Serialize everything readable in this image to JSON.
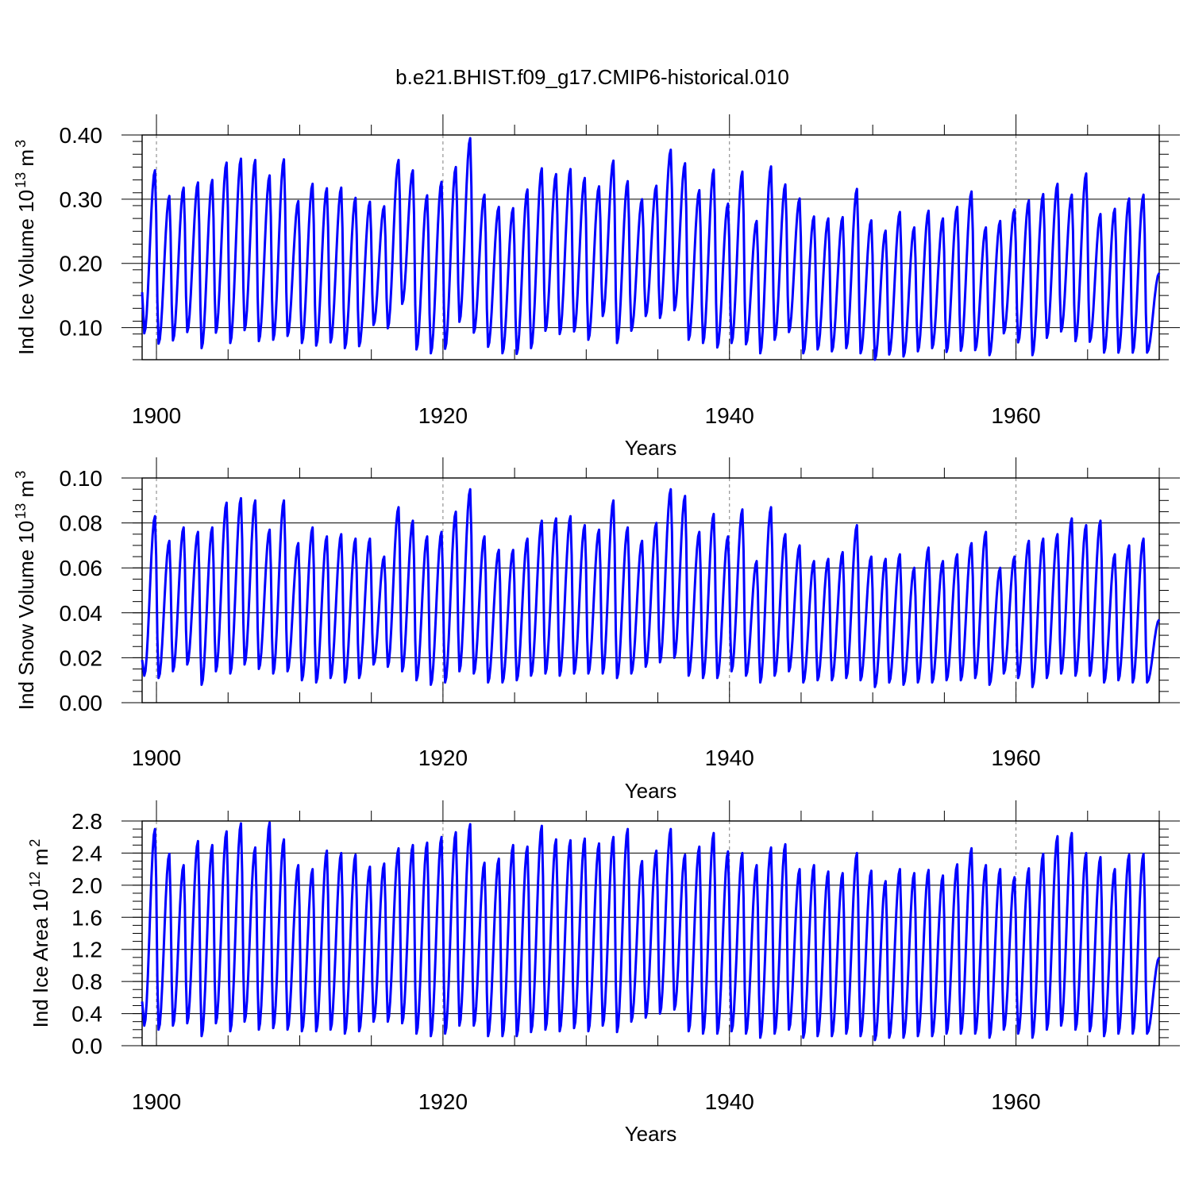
{
  "title": "b.e21.BHIST.f09_g17.CMIP6-historical.010",
  "colors": {
    "line": "#0000ff",
    "axis": "#000000",
    "refline": "#7f7f7f"
  },
  "x_ticks": [
    1900,
    1920,
    1940,
    1960
  ],
  "x_range": [
    1899.0,
    1970.0
  ],
  "chart_data": [
    {
      "type": "line",
      "ylabel": {
        "prefix": "Ind Ice Volume 10",
        "exp": "13",
        "unit": " m",
        "unit_exp": "3"
      },
      "xlabel": "Years",
      "ylim": [
        0.05,
        0.4
      ],
      "y_ticks": [
        "0.10",
        "0.20",
        "0.30",
        "0.40"
      ],
      "y_minor_step": 0.02,
      "series": [
        {
          "name": "Ind Ice Volume",
          "start_year": 1899.0,
          "start_value": 0.155,
          "end_value": 0.185,
          "annual_max": [
            0.345,
            0.305,
            0.318,
            0.326,
            0.33,
            0.357,
            0.363,
            0.361,
            0.337,
            0.362,
            0.297,
            0.324,
            0.317,
            0.318,
            0.302,
            0.296,
            0.289,
            0.361,
            0.345,
            0.306,
            0.327,
            0.35,
            0.395,
            0.307,
            0.288,
            0.286,
            0.315,
            0.348,
            0.339,
            0.347,
            0.333,
            0.32,
            0.36,
            0.328,
            0.3,
            0.321,
            0.377,
            0.356,
            0.314,
            0.346,
            0.293,
            0.343,
            0.266,
            0.351,
            0.323,
            0.301,
            0.273,
            0.27,
            0.272,
            0.316,
            0.267,
            0.251,
            0.28,
            0.256,
            0.282,
            0.27,
            0.288,
            0.312,
            0.256,
            0.266,
            0.284,
            0.298,
            0.308,
            0.324,
            0.307,
            0.34,
            0.277,
            0.285,
            0.301,
            0.307
          ],
          "annual_min": [
            0.091,
            0.075,
            0.08,
            0.093,
            0.068,
            0.092,
            0.076,
            0.096,
            0.079,
            0.081,
            0.087,
            0.076,
            0.072,
            0.077,
            0.068,
            0.071,
            0.104,
            0.099,
            0.137,
            0.066,
            0.06,
            0.067,
            0.109,
            0.092,
            0.07,
            0.06,
            0.059,
            0.068,
            0.095,
            0.09,
            0.094,
            0.081,
            0.118,
            0.076,
            0.095,
            0.118,
            0.115,
            0.127,
            0.081,
            0.076,
            0.069,
            0.076,
            0.074,
            0.06,
            0.081,
            0.093,
            0.06,
            0.066,
            0.063,
            0.068,
            0.06,
            0.05,
            0.058,
            0.055,
            0.063,
            0.068,
            0.062,
            0.064,
            0.065,
            0.057,
            0.091,
            0.077,
            0.057,
            0.084,
            0.094,
            0.079,
            0.078,
            0.061,
            0.061,
            0.061
          ]
        }
      ]
    },
    {
      "type": "line",
      "ylabel": {
        "prefix": "Ind Snow Volume 10",
        "exp": "13",
        "unit": " m",
        "unit_exp": "3"
      },
      "xlabel": "Years",
      "ylim": [
        0.0,
        0.1
      ],
      "y_ticks": [
        "0.00",
        "0.02",
        "0.04",
        "0.06",
        "0.08",
        "0.10"
      ],
      "y_minor_step": 0.005,
      "series": [
        {
          "name": "Ind Snow Volume",
          "start_year": 1899.0,
          "start_value": 0.019,
          "end_value": 0.037,
          "annual_max": [
            0.083,
            0.072,
            0.078,
            0.076,
            0.078,
            0.089,
            0.091,
            0.09,
            0.077,
            0.09,
            0.071,
            0.078,
            0.074,
            0.075,
            0.073,
            0.073,
            0.065,
            0.087,
            0.081,
            0.074,
            0.076,
            0.085,
            0.095,
            0.074,
            0.068,
            0.068,
            0.073,
            0.081,
            0.082,
            0.083,
            0.079,
            0.077,
            0.09,
            0.078,
            0.072,
            0.08,
            0.095,
            0.092,
            0.076,
            0.084,
            0.074,
            0.086,
            0.063,
            0.087,
            0.075,
            0.07,
            0.063,
            0.064,
            0.067,
            0.079,
            0.065,
            0.064,
            0.066,
            0.06,
            0.069,
            0.063,
            0.066,
            0.071,
            0.076,
            0.06,
            0.065,
            0.072,
            0.073,
            0.075,
            0.082,
            0.079,
            0.081,
            0.066,
            0.07,
            0.073
          ],
          "annual_min": [
            0.012,
            0.011,
            0.014,
            0.017,
            0.008,
            0.014,
            0.013,
            0.017,
            0.015,
            0.013,
            0.014,
            0.01,
            0.009,
            0.011,
            0.009,
            0.011,
            0.017,
            0.016,
            0.014,
            0.01,
            0.008,
            0.009,
            0.014,
            0.013,
            0.009,
            0.009,
            0.01,
            0.012,
            0.013,
            0.012,
            0.013,
            0.013,
            0.013,
            0.011,
            0.013,
            0.016,
            0.018,
            0.02,
            0.012,
            0.011,
            0.011,
            0.014,
            0.012,
            0.009,
            0.012,
            0.014,
            0.009,
            0.01,
            0.01,
            0.011,
            0.01,
            0.007,
            0.009,
            0.008,
            0.009,
            0.009,
            0.01,
            0.01,
            0.011,
            0.008,
            0.013,
            0.011,
            0.007,
            0.011,
            0.013,
            0.012,
            0.012,
            0.009,
            0.01,
            0.009
          ]
        }
      ]
    },
    {
      "type": "line",
      "ylabel": {
        "prefix": "Ind Ice Area 10",
        "exp": "12",
        "unit": " m",
        "unit_exp": "2"
      },
      "xlabel": "Years",
      "ylim": [
        0.0,
        2.8
      ],
      "y_ticks": [
        "0.0",
        "0.4",
        "0.8",
        "1.2",
        "1.6",
        "2.0",
        "2.4",
        "2.8"
      ],
      "y_minor_step": 0.1,
      "series": [
        {
          "name": "Ind Ice Area",
          "start_year": 1899.0,
          "start_value": 0.55,
          "end_value": 1.1,
          "annual_max": [
            2.7,
            2.39,
            2.25,
            2.55,
            2.5,
            2.67,
            2.77,
            2.47,
            2.78,
            2.57,
            2.25,
            2.2,
            2.43,
            2.4,
            2.38,
            2.23,
            2.27,
            2.46,
            2.5,
            2.53,
            2.6,
            2.66,
            2.76,
            2.28,
            2.33,
            2.5,
            2.48,
            2.74,
            2.57,
            2.56,
            2.58,
            2.52,
            2.6,
            2.7,
            2.3,
            2.43,
            2.7,
            2.38,
            2.48,
            2.65,
            2.42,
            2.4,
            2.25,
            2.47,
            2.51,
            2.2,
            2.25,
            2.17,
            2.15,
            2.4,
            2.18,
            2.05,
            2.2,
            2.15,
            2.19,
            2.12,
            2.26,
            2.46,
            2.25,
            2.2,
            2.1,
            2.21,
            2.39,
            2.61,
            2.65,
            2.4,
            2.35,
            2.2,
            2.38,
            2.39
          ],
          "annual_min": [
            0.25,
            0.2,
            0.25,
            0.28,
            0.12,
            0.28,
            0.18,
            0.3,
            0.2,
            0.22,
            0.2,
            0.18,
            0.18,
            0.2,
            0.15,
            0.18,
            0.3,
            0.3,
            0.28,
            0.15,
            0.12,
            0.15,
            0.25,
            0.25,
            0.12,
            0.12,
            0.12,
            0.17,
            0.2,
            0.18,
            0.22,
            0.18,
            0.25,
            0.17,
            0.3,
            0.35,
            0.4,
            0.45,
            0.18,
            0.15,
            0.15,
            0.18,
            0.15,
            0.1,
            0.15,
            0.2,
            0.1,
            0.12,
            0.12,
            0.15,
            0.12,
            0.07,
            0.1,
            0.1,
            0.12,
            0.12,
            0.15,
            0.15,
            0.15,
            0.1,
            0.2,
            0.15,
            0.1,
            0.2,
            0.25,
            0.2,
            0.18,
            0.12,
            0.15,
            0.15
          ]
        }
      ]
    }
  ]
}
